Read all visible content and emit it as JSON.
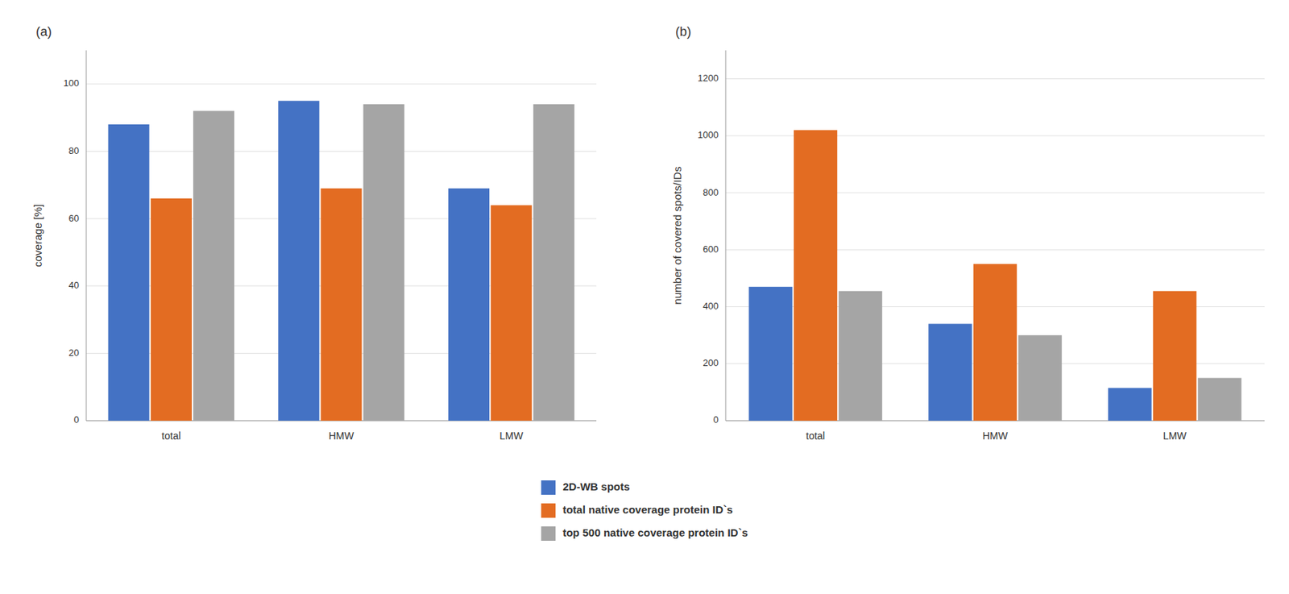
{
  "chart_data": [
    {
      "type": "bar",
      "title": "(a)",
      "categories": [
        "total",
        "HMW",
        "LMW"
      ],
      "series": [
        {
          "name": "2D-WB spots",
          "color": "#4472c4",
          "values": [
            88,
            95,
            69
          ]
        },
        {
          "name": "total native coverage protein ID`s",
          "color": "#e36c22",
          "values": [
            66,
            69,
            64
          ]
        },
        {
          "name": "top 500 native coverage protein ID`s",
          "color": "#a5a5a5",
          "values": [
            92,
            94,
            94
          ]
        }
      ],
      "y_label": "coverage [%]",
      "ylim": [
        0,
        110
      ],
      "yticks": [
        0,
        20,
        40,
        60,
        80,
        100
      ],
      "grid": true,
      "legend": "bottom"
    },
    {
      "type": "bar",
      "title": "(b)",
      "categories": [
        "total",
        "HMW",
        "LMW"
      ],
      "series": [
        {
          "name": "2D-WB spots",
          "color": "#4472c4",
          "values": [
            470,
            340,
            115
          ]
        },
        {
          "name": "total native coverage protein ID`s",
          "color": "#e36c22",
          "values": [
            1020,
            550,
            455
          ]
        },
        {
          "name": "top 500 native coverage protein ID`s",
          "color": "#a5a5a5",
          "values": [
            455,
            300,
            150
          ]
        }
      ],
      "y_label": "number of covered spots/IDs",
      "ylim": [
        0,
        1300
      ],
      "yticks": [
        0,
        200,
        400,
        600,
        800,
        1000,
        1200
      ],
      "grid": true
    }
  ]
}
